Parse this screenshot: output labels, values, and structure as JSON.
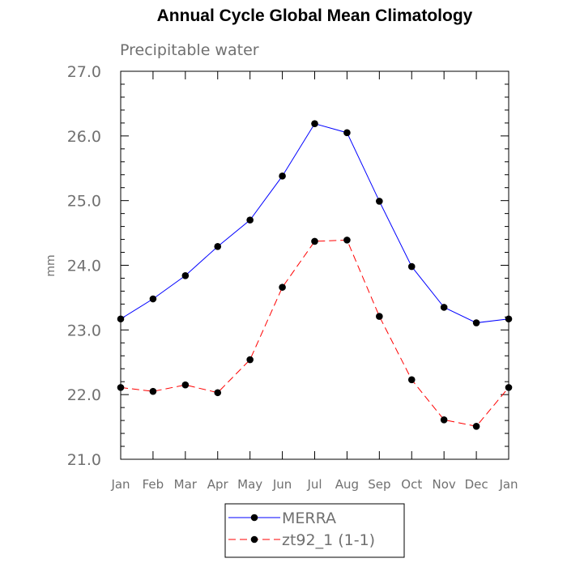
{
  "chart_data": {
    "type": "line",
    "title": "Annual Cycle Global Mean Climatology",
    "subtitle": "Precipitable water",
    "ylabel": "mm",
    "xlabel": "",
    "ylim": [
      21.0,
      27.0
    ],
    "yticks": [
      "21.0",
      "22.0",
      "23.0",
      "24.0",
      "25.0",
      "26.0",
      "27.0"
    ],
    "categories": [
      "Jan",
      "Feb",
      "Mar",
      "Apr",
      "May",
      "Jun",
      "Jul",
      "Aug",
      "Sep",
      "Oct",
      "Nov",
      "Dec",
      "Jan"
    ],
    "series": [
      {
        "name": "MERRA",
        "color": "#0000ff",
        "dash": "solid",
        "values": [
          23.17,
          23.48,
          23.84,
          24.29,
          24.7,
          25.38,
          26.19,
          26.05,
          24.99,
          23.98,
          23.35,
          23.11,
          23.17
        ]
      },
      {
        "name": "zt92_1 (1-1)",
        "color": "#ff0000",
        "dash": "dashed",
        "values": [
          22.11,
          22.05,
          22.15,
          22.03,
          22.54,
          23.66,
          24.37,
          24.39,
          23.21,
          22.23,
          21.61,
          21.51,
          22.11
        ]
      }
    ],
    "grid": false,
    "legend": "bottom"
  }
}
